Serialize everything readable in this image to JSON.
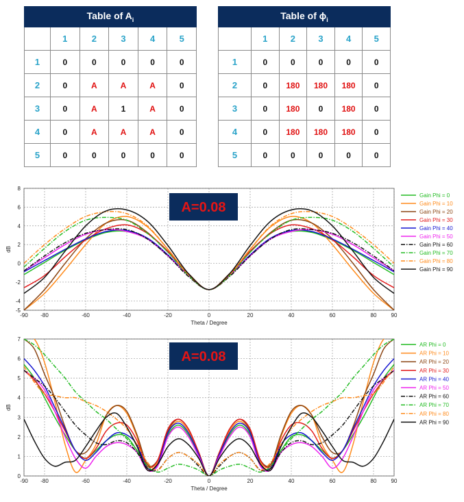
{
  "table_a": {
    "title": "Table of A",
    "title_sub": "i",
    "col_headers": [
      "1",
      "2",
      "3",
      "4",
      "5"
    ],
    "row_headers": [
      "1",
      "2",
      "3",
      "4",
      "5"
    ],
    "cells": [
      [
        "0",
        "0",
        "0",
        "0",
        "0"
      ],
      [
        "0",
        "A",
        "A",
        "A",
        "0"
      ],
      [
        "0",
        "A",
        "1",
        "A",
        "0"
      ],
      [
        "0",
        "A",
        "A",
        "A",
        "0"
      ],
      [
        "0",
        "0",
        "0",
        "0",
        "0"
      ]
    ]
  },
  "table_phi": {
    "title": "Table of ϕ",
    "title_sub": "i",
    "col_headers": [
      "1",
      "2",
      "3",
      "4",
      "5"
    ],
    "row_headers": [
      "1",
      "2",
      "3",
      "4",
      "5"
    ],
    "cells": [
      [
        "0",
        "0",
        "0",
        "0",
        "0"
      ],
      [
        "0",
        "180",
        "180",
        "180",
        "0"
      ],
      [
        "0",
        "180",
        "0",
        "180",
        "0"
      ],
      [
        "0",
        "180",
        "180",
        "180",
        "0"
      ],
      [
        "0",
        "0",
        "0",
        "0",
        "0"
      ]
    ]
  },
  "chart_data": [
    {
      "type": "line",
      "annotation": "A=0.08",
      "xlabel": "Theta / Degree",
      "ylabel": "dB",
      "xlim": [
        -90,
        90
      ],
      "ylim": [
        -5,
        8
      ],
      "xticks": [
        "-90",
        "-80",
        "-60",
        "-40",
        "-20",
        "0",
        "20",
        "40",
        "60",
        "80",
        "90"
      ],
      "yticks": [
        "-5",
        "-4",
        "-2",
        "0",
        "2",
        "4",
        "6",
        "8"
      ],
      "grid": true,
      "legend_position": "right",
      "series": [
        {
          "name": "Gain Phi = 0",
          "color": "#22bb22",
          "dash": "",
          "x": [
            0,
            10,
            20,
            30,
            40,
            50,
            60,
            70,
            80,
            90
          ],
          "y": [
            -2.8,
            -1.3,
            0.8,
            2.6,
            3.4,
            3.3,
            2.5,
            1.4,
            0.1,
            -1.2
          ]
        },
        {
          "name": "Gain Phi = 10",
          "color": "#ff8a1a",
          "dash": "",
          "x": [
            0,
            10,
            20,
            30,
            40,
            50,
            60,
            70,
            80,
            90
          ],
          "y": [
            -2.8,
            -1.2,
            1.5,
            3.9,
            5.0,
            4.3,
            2.0,
            -0.7,
            -3.2,
            -5.0
          ]
        },
        {
          "name": "Gain Phi = 20",
          "color": "#8b4513",
          "dash": "",
          "x": [
            0,
            10,
            20,
            30,
            40,
            50,
            60,
            70,
            80,
            90
          ],
          "y": [
            -2.8,
            -1.1,
            1.2,
            3.3,
            4.6,
            4.3,
            2.6,
            0.0,
            -2.8,
            -5.0
          ]
        },
        {
          "name": "Gain Phi = 30",
          "color": "#e31a1c",
          "dash": "",
          "x": [
            0,
            10,
            20,
            30,
            40,
            50,
            60,
            70,
            80,
            90
          ],
          "y": [
            -2.8,
            -1.2,
            1.3,
            3.2,
            4.1,
            3.7,
            2.5,
            0.7,
            -1.3,
            -2.6
          ]
        },
        {
          "name": "Gain Phi = 40",
          "color": "#1414d0",
          "dash": "",
          "x": [
            0,
            10,
            20,
            30,
            40,
            50,
            60,
            70,
            80,
            90
          ],
          "y": [
            -2.8,
            -1.3,
            0.9,
            2.7,
            3.5,
            3.4,
            2.6,
            1.5,
            0.3,
            -0.9
          ]
        },
        {
          "name": "Gain Phi = 50",
          "color": "#ee22ee",
          "dash": "",
          "x": [
            0,
            10,
            20,
            30,
            40,
            50,
            60,
            70,
            80,
            90
          ],
          "y": [
            -2.8,
            -1.3,
            0.8,
            2.6,
            3.4,
            3.6,
            3.1,
            2.0,
            0.6,
            -0.8
          ]
        },
        {
          "name": "Gain Phi = 60",
          "color": "#111111",
          "dash": "6,2,1.5,2",
          "x": [
            0,
            10,
            20,
            30,
            40,
            50,
            60,
            70,
            80,
            90
          ],
          "y": [
            -2.8,
            -1.4,
            0.8,
            2.6,
            3.6,
            3.6,
            3.2,
            2.2,
            0.8,
            -0.8
          ]
        },
        {
          "name": "Gain Phi = 70",
          "color": "#22bb22",
          "dash": "6,2,1.5,2",
          "x": [
            0,
            10,
            20,
            30,
            40,
            50,
            60,
            70,
            80,
            90
          ],
          "y": [
            -2.8,
            -1.3,
            1.2,
            3.2,
            4.6,
            4.9,
            4.6,
            3.4,
            1.6,
            -0.4
          ]
        },
        {
          "name": "Gain Phi = 80",
          "color": "#ff8a1a",
          "dash": "6,2,1.5,2",
          "x": [
            0,
            10,
            20,
            30,
            40,
            50,
            60,
            70,
            80,
            90
          ],
          "y": [
            -2.8,
            -1.2,
            1.5,
            4.0,
            5.3,
            5.5,
            5.0,
            3.7,
            2.0,
            0.0
          ]
        },
        {
          "name": "Gain Phi = 90",
          "color": "#111111",
          "dash": "",
          "x": [
            0,
            10,
            20,
            30,
            40,
            50,
            60,
            70,
            80,
            90
          ],
          "y": [
            -2.8,
            -1.1,
            1.9,
            4.5,
            5.7,
            5.6,
            4.0,
            1.3,
            -1.5,
            -3.2
          ]
        }
      ]
    },
    {
      "type": "line",
      "annotation": "A=0.08",
      "xlabel": "Theta / Degree",
      "ylabel": "dB",
      "xlim": [
        -90,
        90
      ],
      "ylim": [
        0,
        7
      ],
      "xticks": [
        "-90",
        "-80",
        "-60",
        "-40",
        "-20",
        "0",
        "20",
        "40",
        "60",
        "80",
        "90"
      ],
      "yticks": [
        "0",
        "1",
        "2",
        "3",
        "4",
        "5",
        "6",
        "7"
      ],
      "grid": true,
      "legend_position": "right",
      "series": [
        {
          "name": "AR Phi = 0",
          "color": "#22bb22",
          "dash": "",
          "x": [
            0,
            5,
            10,
            15,
            20,
            25,
            30,
            35,
            40,
            45,
            50,
            55,
            60,
            65,
            70,
            75,
            80,
            85,
            90
          ],
          "y": [
            0.0,
            1.0,
            2.1,
            2.6,
            2.1,
            0.8,
            0.5,
            1.3,
            2.0,
            2.1,
            1.8,
            1.3,
            0.9,
            1.3,
            2.1,
            3.0,
            4.0,
            5.0,
            5.7
          ]
        },
        {
          "name": "AR Phi = 10",
          "color": "#ff8a1a",
          "dash": "",
          "x": [
            0,
            5,
            10,
            15,
            20,
            25,
            30,
            35,
            40,
            45,
            50,
            55,
            60,
            65,
            70,
            75,
            80,
            85,
            90
          ],
          "y": [
            0.0,
            1.2,
            2.3,
            2.8,
            2.2,
            0.7,
            0.4,
            2.0,
            3.2,
            3.6,
            3.1,
            1.6,
            0.8,
            0.2,
            1.6,
            3.8,
            5.8,
            7.0,
            7.0
          ]
        },
        {
          "name": "AR Phi = 20",
          "color": "#8b4513",
          "dash": "",
          "x": [
            0,
            5,
            10,
            15,
            20,
            25,
            30,
            35,
            40,
            45,
            50,
            55,
            60,
            65,
            70,
            75,
            80,
            85,
            90
          ],
          "y": [
            0.0,
            1.2,
            2.4,
            2.9,
            2.3,
            0.8,
            0.6,
            2.1,
            3.3,
            3.6,
            3.1,
            2.0,
            1.2,
            1.3,
            2.5,
            4.0,
            5.2,
            6.5,
            7.0
          ]
        },
        {
          "name": "AR Phi = 30",
          "color": "#e31a1c",
          "dash": "",
          "x": [
            0,
            5,
            10,
            15,
            20,
            25,
            30,
            35,
            40,
            45,
            50,
            55,
            60,
            65,
            70,
            75,
            80,
            85,
            90
          ],
          "y": [
            0.0,
            1.2,
            2.4,
            2.9,
            2.4,
            0.8,
            0.5,
            1.8,
            2.6,
            2.7,
            2.3,
            1.4,
            0.9,
            1.3,
            2.3,
            3.3,
            4.2,
            4.9,
            5.4
          ]
        },
        {
          "name": "AR Phi = 40",
          "color": "#1414d0",
          "dash": "",
          "x": [
            0,
            5,
            10,
            15,
            20,
            25,
            30,
            35,
            40,
            45,
            50,
            55,
            60,
            65,
            70,
            75,
            80,
            85,
            90
          ],
          "y": [
            0.0,
            1.1,
            2.2,
            2.7,
            2.2,
            0.6,
            0.4,
            1.6,
            2.1,
            2.2,
            1.8,
            1.2,
            0.8,
            1.3,
            2.4,
            3.5,
            4.6,
            5.4,
            6.0
          ]
        },
        {
          "name": "AR Phi = 50",
          "color": "#ee22ee",
          "dash": "",
          "x": [
            0,
            5,
            10,
            15,
            20,
            25,
            30,
            35,
            40,
            45,
            50,
            55,
            60,
            65,
            70,
            75,
            80,
            85,
            90
          ],
          "y": [
            0.0,
            1.0,
            2.0,
            2.5,
            2.0,
            0.5,
            0.3,
            1.2,
            1.6,
            1.7,
            1.5,
            1.0,
            0.4,
            0.9,
            2.0,
            3.3,
            4.4,
            5.0,
            5.4
          ]
        },
        {
          "name": "AR Phi = 60",
          "color": "#111111",
          "dash": "6,2,1.5,2",
          "x": [
            0,
            5,
            10,
            15,
            20,
            25,
            30,
            35,
            40,
            45,
            50,
            55,
            60,
            65,
            70,
            75,
            80,
            85,
            90
          ],
          "y": [
            0.0,
            0.5,
            1.0,
            1.2,
            0.9,
            0.3,
            0.4,
            1.2,
            1.7,
            1.8,
            1.6,
            1.7,
            2.1,
            2.6,
            3.3,
            4.0,
            4.6,
            5.0,
            5.4
          ]
        },
        {
          "name": "AR Phi = 70",
          "color": "#22bb22",
          "dash": "6,2,1.5,2",
          "x": [
            0,
            5,
            10,
            15,
            20,
            25,
            30,
            35,
            40,
            45,
            50,
            55,
            60,
            65,
            70,
            75,
            80,
            85,
            90
          ],
          "y": [
            0.0,
            0.3,
            0.5,
            0.6,
            0.4,
            0.2,
            0.5,
            1.3,
            1.9,
            2.4,
            2.9,
            3.3,
            3.8,
            4.3,
            5.0,
            5.6,
            6.2,
            6.7,
            7.0
          ]
        },
        {
          "name": "AR Phi = 80",
          "color": "#ff8a1a",
          "dash": "6,2,1.5,2",
          "x": [
            0,
            5,
            10,
            15,
            20,
            25,
            30,
            35,
            40,
            45,
            50,
            55,
            60,
            65,
            70,
            75,
            80,
            85,
            90
          ],
          "y": [
            0.0,
            0.6,
            1.0,
            1.2,
            0.9,
            0.3,
            0.7,
            1.6,
            2.4,
            2.9,
            3.3,
            3.6,
            3.8,
            4.0,
            4.0,
            4.1,
            4.2,
            4.8,
            5.6
          ]
        },
        {
          "name": "AR Phi = 90",
          "color": "#111111",
          "dash": "",
          "x": [
            0,
            5,
            10,
            15,
            20,
            25,
            30,
            35,
            40,
            45,
            50,
            55,
            60,
            65,
            70,
            75,
            80,
            85,
            90
          ],
          "y": [
            0.0,
            0.9,
            1.6,
            1.9,
            1.5,
            0.6,
            0.3,
            1.5,
            2.5,
            3.2,
            3.0,
            2.3,
            1.5,
            0.8,
            0.7,
            0.5,
            0.9,
            1.8,
            2.9
          ]
        }
      ]
    }
  ]
}
